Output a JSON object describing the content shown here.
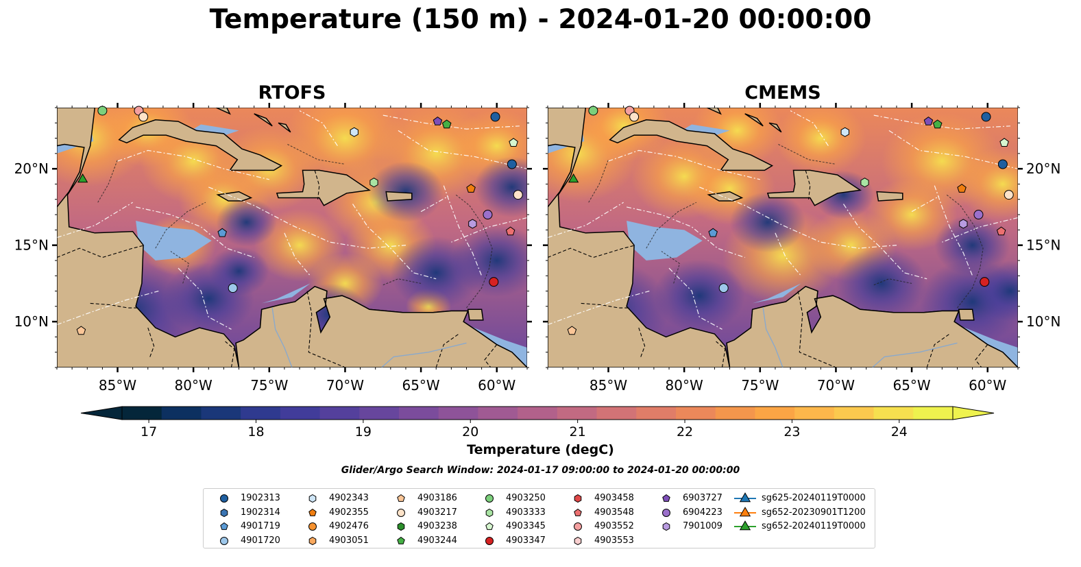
{
  "title": "Temperature (150 m) - 2024-01-20 00:00:00",
  "panels": [
    {
      "title": "RTOFS"
    },
    {
      "title": "CMEMS"
    }
  ],
  "map": {
    "lon_range": [
      -89,
      -58
    ],
    "lat_range": [
      7,
      24
    ],
    "lon_ticks": [
      -85,
      -80,
      -75,
      -70,
      -65,
      -60
    ],
    "lon_tick_labels": [
      "85°W",
      "80°W",
      "75°W",
      "70°W",
      "65°W",
      "60°W"
    ],
    "lat_ticks": [
      10,
      15,
      20
    ],
    "lat_tick_labels": [
      "10°N",
      "15°N",
      "20°N"
    ],
    "colors": {
      "land": "#d1b58c",
      "shallow": "#8fb4e0",
      "border": "#000000"
    }
  },
  "colorbar": {
    "label": "Temperature (degC)",
    "min": 16.75,
    "max": 24.5,
    "ticks": [
      17,
      18,
      19,
      20,
      21,
      22,
      23,
      24
    ],
    "tick_labels": [
      "17",
      "18",
      "19",
      "20",
      "21",
      "22",
      "23",
      "24"
    ],
    "colors": [
      "#04263a",
      "#0c3060",
      "#1a3779",
      "#2f3a8f",
      "#413c9a",
      "#54409c",
      "#67469d",
      "#7b4c9c",
      "#8e5399",
      "#a05a93",
      "#b2618b",
      "#c26a82",
      "#d27376",
      "#e07d68",
      "#eb885a",
      "#f4964c",
      "#fba545",
      "#fdb74b",
      "#fbc94e",
      "#f6e04f",
      "#eef24e"
    ]
  },
  "search_window": "Glider/Argo Search Window: 2024-01-17 09:00:00 to 2024-01-20 00:00:00",
  "legend": {
    "items": [
      {
        "label": "1902313",
        "marker": "circle",
        "color": "#1f5fa0"
      },
      {
        "label": "1902314",
        "marker": "hexagon",
        "color": "#3a74b2"
      },
      {
        "label": "4901719",
        "marker": "pentagon",
        "color": "#5b9bd5"
      },
      {
        "label": "4901720",
        "marker": "circle",
        "color": "#9dc7ea"
      },
      {
        "label": "4902343",
        "marker": "hexagon",
        "color": "#cfe6f7"
      },
      {
        "label": "4902355",
        "marker": "pentagon",
        "color": "#f07e10"
      },
      {
        "label": "4902476",
        "marker": "circle",
        "color": "#f6922f"
      },
      {
        "label": "4903051",
        "marker": "hexagon",
        "color": "#f9a95f"
      },
      {
        "label": "4903186",
        "marker": "pentagon",
        "color": "#fbc697"
      },
      {
        "label": "4903217",
        "marker": "circle",
        "color": "#fde3c9"
      },
      {
        "label": "4903238",
        "marker": "hexagon",
        "color": "#2b8f2b"
      },
      {
        "label": "4903244",
        "marker": "pentagon",
        "color": "#45b045"
      },
      {
        "label": "4903250",
        "marker": "circle",
        "color": "#7cd07c"
      },
      {
        "label": "4903333",
        "marker": "hexagon",
        "color": "#a9e4a3"
      },
      {
        "label": "4903345",
        "marker": "pentagon",
        "color": "#d6f6cf"
      },
      {
        "label": "4903347",
        "marker": "circle",
        "color": "#d62222"
      },
      {
        "label": "4903458",
        "marker": "hexagon",
        "color": "#e04848"
      },
      {
        "label": "4903548",
        "marker": "pentagon",
        "color": "#ec7070"
      },
      {
        "label": "4903552",
        "marker": "circle",
        "color": "#f4a0a0"
      },
      {
        "label": "4903553",
        "marker": "hexagon",
        "color": "#f9cfcf"
      },
      {
        "label": "6903727",
        "marker": "pentagon",
        "color": "#7d4fb8"
      },
      {
        "label": "6904223",
        "marker": "circle",
        "color": "#9b70cb"
      },
      {
        "label": "7901009",
        "marker": "hexagon",
        "color": "#b89be0"
      },
      {
        "label": "sg625-20240119T0000",
        "marker": "triangle-line",
        "color": "#1f77b4"
      },
      {
        "label": "sg652-20230901T1200",
        "marker": "triangle-line",
        "color": "#ff7f0e"
      },
      {
        "label": "sg652-20240119T0000",
        "marker": "triangle-line",
        "color": "#2ca02c"
      }
    ]
  },
  "markers": [
    {
      "lon": -86.0,
      "lat": 23.8,
      "marker": "circle",
      "color": "#7cd07c"
    },
    {
      "lon": -83.6,
      "lat": 23.8,
      "marker": "circle",
      "color": "#f4a0a0"
    },
    {
      "lon": -83.3,
      "lat": 23.4,
      "marker": "circle",
      "color": "#fde3c9"
    },
    {
      "lon": -63.9,
      "lat": 23.1,
      "marker": "pentagon",
      "color": "#7d4fb8"
    },
    {
      "lon": -63.3,
      "lat": 22.9,
      "marker": "pentagon",
      "color": "#45b045"
    },
    {
      "lon": -60.1,
      "lat": 23.4,
      "marker": "circle",
      "color": "#1f5fa0"
    },
    {
      "lon": -69.4,
      "lat": 22.4,
      "marker": "hexagon",
      "color": "#cfe6f7"
    },
    {
      "lon": -58.9,
      "lat": 21.7,
      "marker": "pentagon",
      "color": "#d6f6cf"
    },
    {
      "lon": -59.0,
      "lat": 20.3,
      "marker": "circle",
      "color": "#1f5fa0"
    },
    {
      "lon": -68.1,
      "lat": 19.1,
      "marker": "hexagon",
      "color": "#a9e4a3"
    },
    {
      "lon": -61.7,
      "lat": 18.7,
      "marker": "pentagon",
      "color": "#f07e10"
    },
    {
      "lon": -58.6,
      "lat": 18.3,
      "marker": "circle",
      "color": "#fde3c9"
    },
    {
      "lon": -60.6,
      "lat": 17.0,
      "marker": "circle",
      "color": "#9b70cb"
    },
    {
      "lon": -61.6,
      "lat": 16.4,
      "marker": "hexagon",
      "color": "#b89be0"
    },
    {
      "lon": -59.1,
      "lat": 15.9,
      "marker": "pentagon",
      "color": "#ec7070"
    },
    {
      "lon": -78.1,
      "lat": 15.8,
      "marker": "pentagon",
      "color": "#5b9bd5"
    },
    {
      "lon": -60.2,
      "lat": 12.6,
      "marker": "circle",
      "color": "#d62222"
    },
    {
      "lon": -77.4,
      "lat": 12.2,
      "marker": "circle",
      "color": "#9dc7ea"
    },
    {
      "lon": -87.4,
      "lat": 9.4,
      "marker": "pentagon",
      "color": "#fbc697"
    },
    {
      "lon": -87.3,
      "lat": 19.3,
      "marker": "triangle",
      "color": "#2ca02c"
    }
  ]
}
